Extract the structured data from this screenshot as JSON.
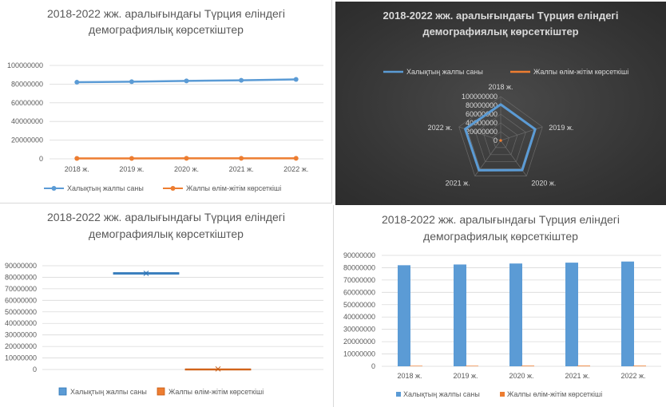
{
  "colors": {
    "series1": "#5b9bd5",
    "series2": "#ed7d31"
  },
  "chart_data": [
    {
      "type": "line",
      "title_line1": "2018-2022 жж. аралығындағы Түрция еліндегі",
      "title_line2": "демографиялық көрсеткіштер",
      "categories": [
        "2018 ж.",
        "2019 ж.",
        "2020 ж.",
        "2021 ж.",
        "2022 ж."
      ],
      "series": [
        {
          "name": "Халықтың жалпы саны",
          "values": [
            82000000,
            82600000,
            83400000,
            84100000,
            85000000
          ]
        },
        {
          "name": "Жалпы өлім-жітім көрсеткіші",
          "values": [
            420000,
            435000,
            510000,
            540000,
            505000
          ]
        }
      ],
      "yticks": [
        "0",
        "20000000",
        "40000000",
        "60000000",
        "80000000",
        "100000000"
      ],
      "ylim": [
        0,
        100000000
      ],
      "grid": true,
      "legend": "bottom"
    },
    {
      "type": "radar",
      "title_line1": "2018-2022 жж. аралығындағы Түрция еліндегі",
      "title_line2": "демографиялық көрсеткіштер",
      "categories": [
        "2018 ж.",
        "2019 ж.",
        "2020 ж.",
        "2021 ж.",
        "2022 ж."
      ],
      "series": [
        {
          "name": "Халықтың жалпы саны",
          "values": [
            82000000,
            82600000,
            83400000,
            84100000,
            85000000
          ]
        },
        {
          "name": "Жалпы өлім-жітім көрсеткіші",
          "values": [
            420000,
            435000,
            510000,
            540000,
            505000
          ]
        }
      ],
      "yticks": [
        "0",
        "20000000",
        "40000000",
        "60000000",
        "80000000",
        "100000000"
      ],
      "ylim": [
        0,
        100000000
      ],
      "legend": "top",
      "theme": "dark"
    },
    {
      "type": "box",
      "title_line1": "2018-2022 жж. аралығындағы Түрция еліндегі",
      "title_line2": "демографиялық көрсеткіштер",
      "series": [
        {
          "name": "Халықтың жалпы саны",
          "q1": 82600000,
          "median": 83400000,
          "mean": 83420000,
          "q3": 84100000,
          "min": 82000000,
          "max": 85000000
        },
        {
          "name": "Жалпы өлім-жітім көрсеткіші",
          "q1": 435000,
          "median": 505000,
          "mean": 482000,
          "q3": 510000,
          "min": 420000,
          "max": 540000
        }
      ],
      "yticks": [
        "0",
        "10000000",
        "20000000",
        "30000000",
        "40000000",
        "50000000",
        "60000000",
        "70000000",
        "80000000",
        "90000000"
      ],
      "ylim": [
        0,
        90000000
      ],
      "grid": true,
      "legend": "bottom"
    },
    {
      "type": "bar",
      "title_line1": "2018-2022 жж. аралығындағы Түрция еліндегі",
      "title_line2": "демографиялық көрсеткіштер",
      "categories": [
        "2018 ж.",
        "2019 ж.",
        "2020 ж.",
        "2021 ж.",
        "2022 ж."
      ],
      "series": [
        {
          "name": "Халықтың жалпы саны",
          "values": [
            82000000,
            82600000,
            83400000,
            84100000,
            85000000
          ]
        },
        {
          "name": "Жалпы өлім-жітім көрсеткіші",
          "values": [
            420000,
            435000,
            510000,
            540000,
            505000
          ]
        }
      ],
      "yticks": [
        "0",
        "10000000",
        "20000000",
        "30000000",
        "40000000",
        "50000000",
        "60000000",
        "70000000",
        "80000000",
        "90000000"
      ],
      "ylim": [
        0,
        90000000
      ],
      "grid": true,
      "legend": "bottom"
    }
  ]
}
